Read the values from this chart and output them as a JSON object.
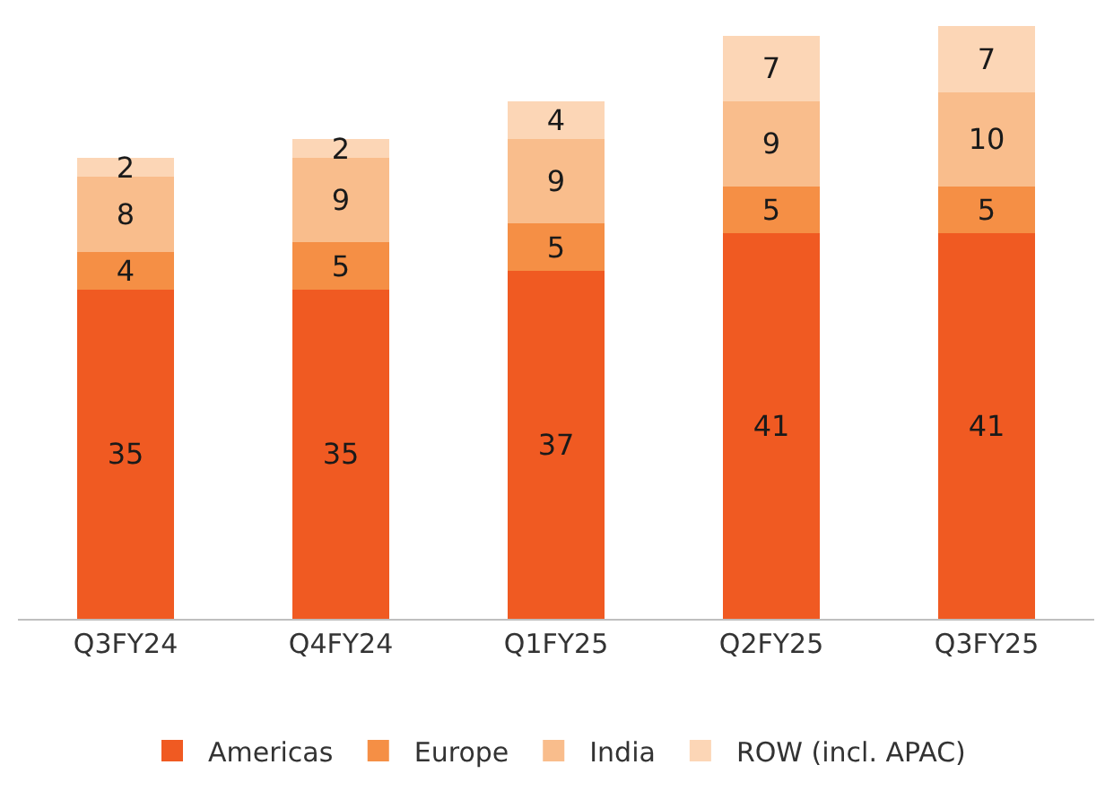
{
  "chart_data": {
    "type": "bar",
    "stacked": true,
    "data_labels": true,
    "legend": "bottom",
    "categories": [
      "Q3FY24",
      "Q4FY24",
      "Q1FY25",
      "Q2FY25",
      "Q3FY25"
    ],
    "series": [
      {
        "name": "Americas",
        "color": "#f05a22",
        "values": [
          35,
          35,
          37,
          41,
          41
        ]
      },
      {
        "name": "Europe",
        "color": "#f58f45",
        "values": [
          4,
          5,
          5,
          5,
          5
        ]
      },
      {
        "name": "India",
        "color": "#f9bd8c",
        "values": [
          8,
          9,
          9,
          9,
          10
        ]
      },
      {
        "name": "ROW (incl. APAC)",
        "color": "#fcd6b6",
        "values": [
          2,
          2,
          4,
          7,
          7
        ]
      }
    ]
  }
}
